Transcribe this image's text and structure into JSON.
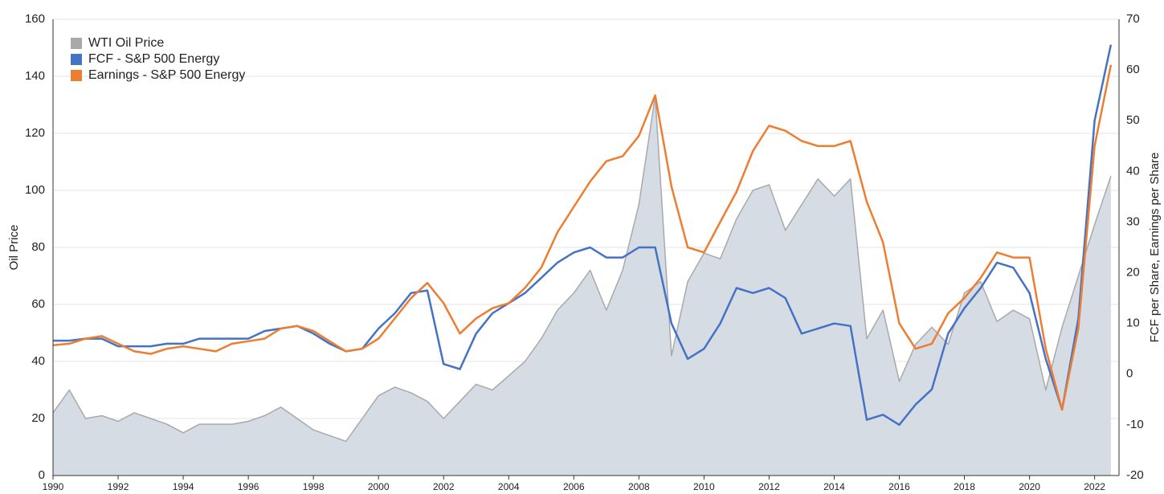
{
  "chart_data": {
    "type": "line",
    "x": [
      1990,
      1990.5,
      1991,
      1991.5,
      1992,
      1992.5,
      1993,
      1993.5,
      1994,
      1994.5,
      1995,
      1995.5,
      1996,
      1996.5,
      1997,
      1997.5,
      1998,
      1998.5,
      1999,
      1999.5,
      2000,
      2000.5,
      2001,
      2001.5,
      2002,
      2002.5,
      2003,
      2003.5,
      2004,
      2004.5,
      2005,
      2005.5,
      2006,
      2006.5,
      2007,
      2007.5,
      2008,
      2008.5,
      2009,
      2009.5,
      2010,
      2010.5,
      2011,
      2011.5,
      2012,
      2012.5,
      2013,
      2013.5,
      2014,
      2014.5,
      2015,
      2015.5,
      2016,
      2016.5,
      2017,
      2017.5,
      2018,
      2018.5,
      2019,
      2019.5,
      2020,
      2020.5,
      2021,
      2021.5,
      2022,
      2022.5
    ],
    "series": [
      {
        "name": "WTI Oil Price",
        "color": "#a9a9a9",
        "fill": "#d6dce4",
        "style": "area",
        "axis": "y",
        "values": [
          22,
          30,
          20,
          21,
          19,
          22,
          20,
          18,
          15,
          18,
          18,
          18,
          19,
          21,
          24,
          20,
          16,
          14,
          12,
          20,
          28,
          31,
          29,
          26,
          20,
          26,
          32,
          30,
          35,
          40,
          48,
          58,
          64,
          72,
          58,
          72,
          95,
          133,
          42,
          68,
          78,
          76,
          90,
          100,
          102,
          86,
          95,
          104,
          98,
          104,
          48,
          58,
          33,
          46,
          52,
          46,
          64,
          68,
          54,
          58,
          55,
          30,
          52,
          70,
          88,
          105
        ]
      },
      {
        "name": "FCF - S&P 500 Energy",
        "color": "#4472c4",
        "axis": "y2",
        "values": [
          6.6,
          6.6,
          7,
          7,
          5.5,
          5.5,
          5.5,
          6,
          6,
          7,
          7,
          7,
          7,
          8.5,
          9,
          9.5,
          8,
          6,
          4.5,
          5,
          9,
          12,
          16,
          16.5,
          2,
          1,
          8,
          12,
          14,
          16,
          19,
          22,
          24,
          25,
          23,
          23,
          25,
          25,
          10,
          3,
          5,
          10,
          17,
          16,
          17,
          15,
          8,
          9,
          10,
          9.5,
          -9,
          -8,
          -10,
          -6,
          -3,
          8,
          13,
          17,
          22,
          21,
          16,
          3,
          -7,
          11,
          50,
          65
        ]
      },
      {
        "name": "Earnings - S&P 500 Energy",
        "color": "#ed7d31",
        "axis": "y2",
        "values": [
          5.7,
          6,
          7,
          7.5,
          6,
          4.5,
          4,
          5,
          5.5,
          5,
          4.5,
          6,
          6.5,
          7,
          9,
          9.5,
          8.5,
          6.5,
          4.5,
          5,
          7,
          11,
          15,
          18,
          14,
          8,
          11,
          13,
          14,
          17,
          21,
          28,
          33,
          38,
          42,
          43,
          47,
          55,
          37,
          25,
          24,
          30,
          36,
          44,
          49,
          48,
          46,
          45,
          45,
          46,
          34,
          26,
          10,
          5,
          6,
          12,
          15,
          19,
          24,
          23,
          23,
          5,
          -7,
          9,
          45,
          61
        ]
      }
    ],
    "xlim": [
      1990,
      2022.75
    ],
    "xticks": [
      1990,
      1992,
      1994,
      1996,
      1998,
      2000,
      2002,
      2004,
      2006,
      2008,
      2010,
      2012,
      2014,
      2016,
      2018,
      2020,
      2022
    ],
    "ylim": [
      0,
      160
    ],
    "yticks": [
      0,
      20,
      40,
      60,
      80,
      100,
      120,
      140,
      160
    ],
    "y2lim": [
      -20,
      70
    ],
    "y2ticks": [
      -20,
      -10,
      0,
      10,
      20,
      30,
      40,
      50,
      60,
      70
    ],
    "ylabel": "Oil Price",
    "y2label": "FCF per Share, Earnings per Share",
    "grid": true,
    "legend": "upper left"
  }
}
